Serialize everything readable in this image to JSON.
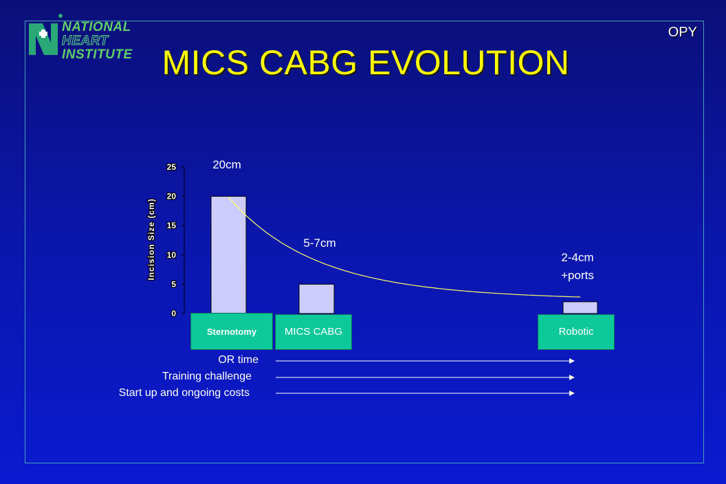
{
  "slide": {
    "title": "MICS CABG EVOLUTION",
    "corner_text": "OPY",
    "logo": {
      "line1": "NATIONAL",
      "line2": "HEART",
      "line3": "INSTITUTE"
    }
  },
  "chart_data": {
    "type": "bar",
    "categories": [
      "Sternotomy",
      "MICS CABG",
      "Robotic"
    ],
    "values": [
      20,
      5,
      2
    ],
    "ylabel": "Incision Size (cm)",
    "ylim": [
      0,
      25
    ],
    "yticks": [
      "0",
      "5",
      "10",
      "15",
      "20",
      "25"
    ],
    "bar_labels": [
      "20cm",
      "5-7cm",
      "2-4cm\n+ports"
    ],
    "trend_line": "decreasing curve",
    "colors": {
      "bar": "#ccccff",
      "category_box": "#0dc898",
      "trend": "#ffff66"
    }
  },
  "arrows": [
    {
      "label": "OR time"
    },
    {
      "label": "Training challenge"
    },
    {
      "label": "Start up and ongoing costs"
    }
  ]
}
